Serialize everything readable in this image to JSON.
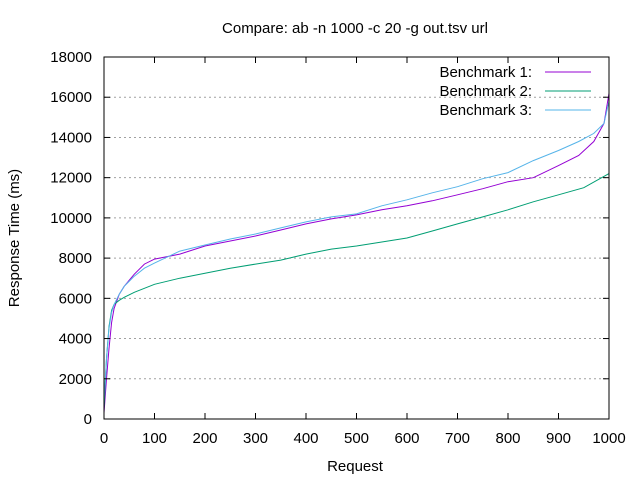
{
  "chart_data": {
    "type": "line",
    "title": "Compare: ab -n 1000 -c 20 -g out.tsv url",
    "xlabel": "Request",
    "ylabel": "Response Time (ms)",
    "xlim": [
      0,
      1000
    ],
    "ylim": [
      0,
      18000
    ],
    "x_ticks": [
      0,
      100,
      200,
      300,
      400,
      500,
      600,
      700,
      800,
      900,
      1000
    ],
    "y_ticks": [
      0,
      2000,
      4000,
      6000,
      8000,
      10000,
      12000,
      14000,
      16000,
      18000
    ],
    "grid": "horizontal-dotted",
    "legend_position": "top-right",
    "series": [
      {
        "name": "Benchmark 1:",
        "color": "#9400d3",
        "x": [
          0,
          5,
          10,
          15,
          20,
          30,
          40,
          60,
          80,
          100,
          150,
          200,
          250,
          300,
          350,
          400,
          450,
          500,
          550,
          600,
          650,
          700,
          750,
          800,
          850,
          900,
          940,
          970,
          990,
          1000
        ],
        "y": [
          300,
          2000,
          3500,
          4800,
          5500,
          6200,
          6600,
          7200,
          7700,
          7950,
          8200,
          8600,
          8850,
          9100,
          9400,
          9700,
          9950,
          10150,
          10400,
          10600,
          10850,
          11150,
          11450,
          11800,
          12000,
          12600,
          13100,
          13800,
          14700,
          16200
        ]
      },
      {
        "name": "Benchmark 2:",
        "color": "#009e73",
        "x": [
          0,
          5,
          10,
          15,
          20,
          30,
          40,
          60,
          80,
          100,
          150,
          200,
          250,
          300,
          350,
          400,
          450,
          500,
          550,
          600,
          650,
          700,
          750,
          800,
          850,
          900,
          950,
          1000
        ],
        "y": [
          500,
          3000,
          4600,
          5400,
          5700,
          5900,
          6050,
          6300,
          6500,
          6700,
          7000,
          7250,
          7500,
          7700,
          7900,
          8200,
          8450,
          8600,
          8800,
          9000,
          9350,
          9700,
          10050,
          10400,
          10800,
          11150,
          11500,
          12200
        ]
      },
      {
        "name": "Benchmark 3:",
        "color": "#56b4e9",
        "x": [
          0,
          5,
          10,
          15,
          20,
          30,
          40,
          60,
          80,
          100,
          150,
          200,
          250,
          300,
          350,
          400,
          450,
          500,
          550,
          600,
          650,
          700,
          750,
          800,
          850,
          900,
          940,
          970,
          990,
          1000
        ],
        "y": [
          800,
          3000,
          4500,
          5300,
          5700,
          6200,
          6600,
          7100,
          7500,
          7750,
          8350,
          8650,
          8950,
          9200,
          9500,
          9800,
          10050,
          10200,
          10600,
          10900,
          11250,
          11550,
          11950,
          12250,
          12850,
          13350,
          13800,
          14200,
          14700,
          15800
        ]
      }
    ]
  }
}
